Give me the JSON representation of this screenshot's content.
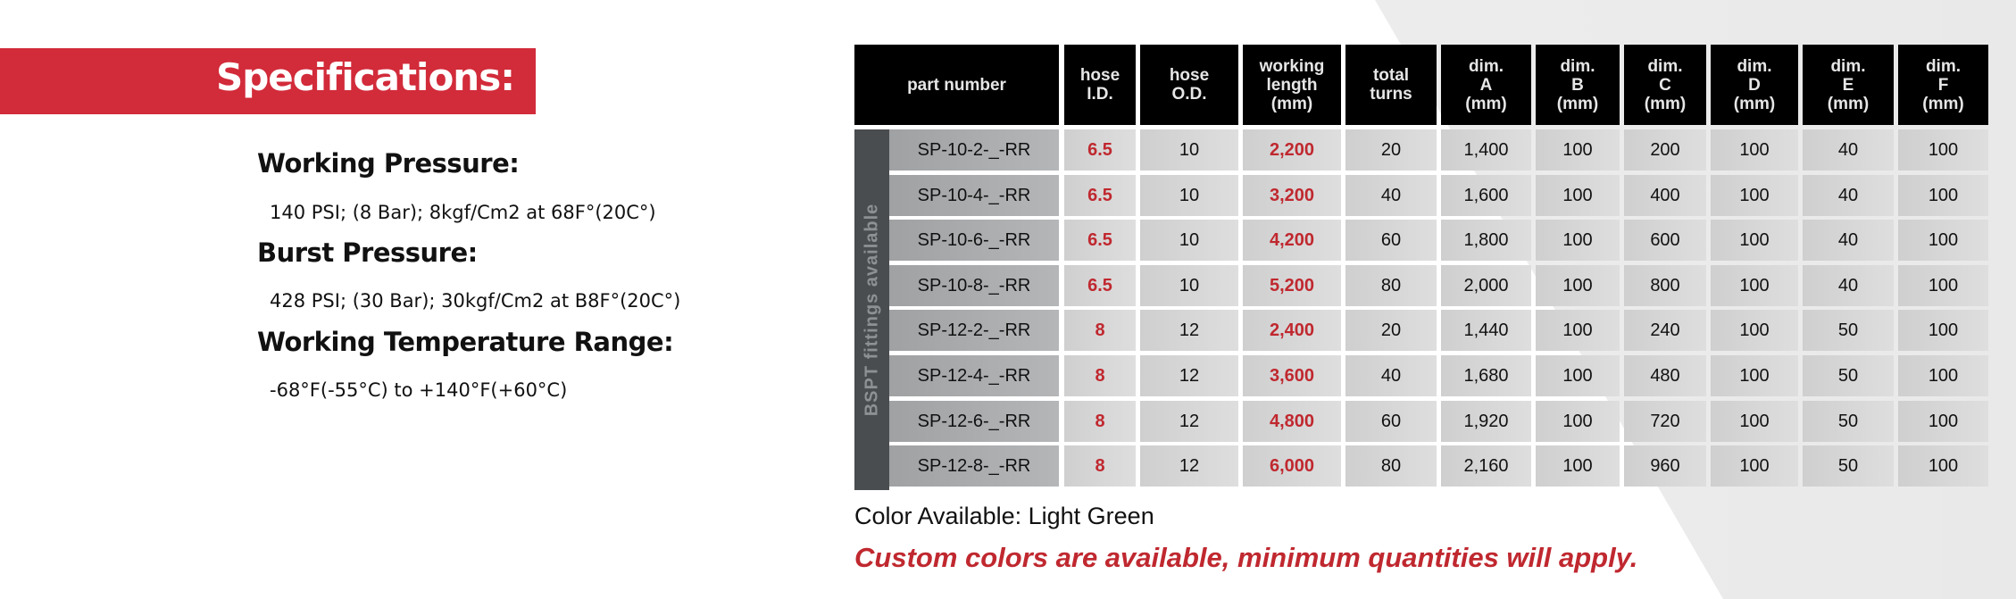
{
  "specs": {
    "title": "Specifications:",
    "items": [
      {
        "heading": "Working Pressure:",
        "value": "140 PSI; (8 Bar); 8kgf/Cm2 at 68F°(20C°)"
      },
      {
        "heading": "Burst Pressure:",
        "value": "428 PSI; (30 Bar); 30kgf/Cm2 at B8F°(20C°)"
      },
      {
        "heading": "Working Temperature Range:",
        "value": "-68°F(-55°C) to +140°F(+60°C)"
      }
    ]
  },
  "table": {
    "side_label": "BSPT fittings available",
    "headers": [
      "part number",
      "hose\nI.D.",
      "hose\nO.D.",
      "working\nlength\n(mm)",
      "total\nturns",
      "dim.\nA\n(mm)",
      "dim.\nB\n(mm)",
      "dim.\nC\n(mm)",
      "dim.\nD\n(mm)",
      "dim.\nE\n(mm)",
      "dim.\nF\n(mm)"
    ],
    "rows": [
      [
        "SP-10-2-_-RR",
        "6.5",
        "10",
        "2,200",
        "20",
        "1,400",
        "100",
        "200",
        "100",
        "40",
        "100"
      ],
      [
        "SP-10-4-_-RR",
        "6.5",
        "10",
        "3,200",
        "40",
        "1,600",
        "100",
        "400",
        "100",
        "40",
        "100"
      ],
      [
        "SP-10-6-_-RR",
        "6.5",
        "10",
        "4,200",
        "60",
        "1,800",
        "100",
        "600",
        "100",
        "40",
        "100"
      ],
      [
        "SP-10-8-_-RR",
        "6.5",
        "10",
        "5,200",
        "80",
        "2,000",
        "100",
        "800",
        "100",
        "40",
        "100"
      ],
      [
        "SP-12-2-_-RR",
        "8",
        "12",
        "2,400",
        "20",
        "1,440",
        "100",
        "240",
        "100",
        "50",
        "100"
      ],
      [
        "SP-12-4-_-RR",
        "8",
        "12",
        "3,600",
        "40",
        "1,680",
        "100",
        "480",
        "100",
        "50",
        "100"
      ],
      [
        "SP-12-6-_-RR",
        "8",
        "12",
        "4,800",
        "60",
        "1,920",
        "100",
        "720",
        "100",
        "50",
        "100"
      ],
      [
        "SP-12-8-_-RR",
        "8",
        "12",
        "6,000",
        "80",
        "2,160",
        "100",
        "960",
        "100",
        "50",
        "100"
      ]
    ],
    "highlight_color": "#c0282f"
  },
  "notes": {
    "color_available": "Color Available: Light Green",
    "custom": "Custom colors are available, minimum quantities will apply."
  }
}
